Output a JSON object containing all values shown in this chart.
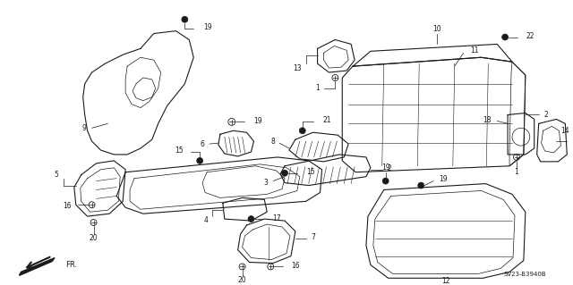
{
  "bg_color": "#ffffff",
  "line_color": "#1a1a1a",
  "diagram_code": "SV23-B3940B",
  "figsize": [
    6.4,
    3.19
  ],
  "dpi": 100
}
